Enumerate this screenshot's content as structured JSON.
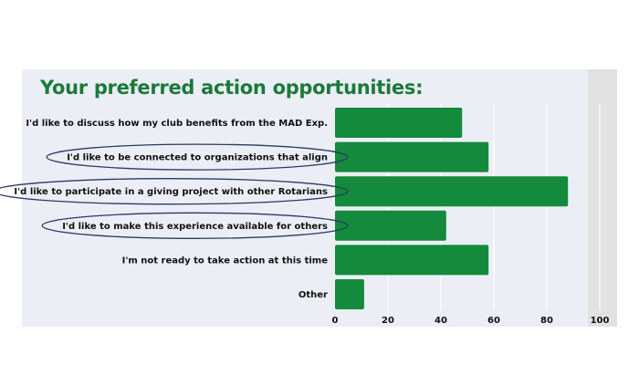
{
  "chart_data": {
    "type": "bar",
    "orientation": "horizontal",
    "title": "Your preferred action opportunities:",
    "categories": [
      "I'd like to discuss how my club benefits from the MAD Exp.",
      "I'd like to be connected to organizations that align",
      "I'd like to participate in a giving project with other Rotarians",
      "I'd like to make this experience available for others",
      "I'm not ready to take action at this time",
      "Other"
    ],
    "values": [
      48,
      58,
      88,
      42,
      58,
      11
    ],
    "highlighted": [
      false,
      true,
      true,
      true,
      false,
      false
    ],
    "xlim": [
      0,
      100
    ],
    "xticks": [
      "0",
      "20",
      "40",
      "60",
      "80",
      "100"
    ],
    "xlabel": "",
    "ylabel": "",
    "grid": true,
    "colors": {
      "bar": "#138a3c",
      "title": "#1b7a3a",
      "ellipse": "#2b3a66",
      "grid": "#ffffff"
    }
  }
}
